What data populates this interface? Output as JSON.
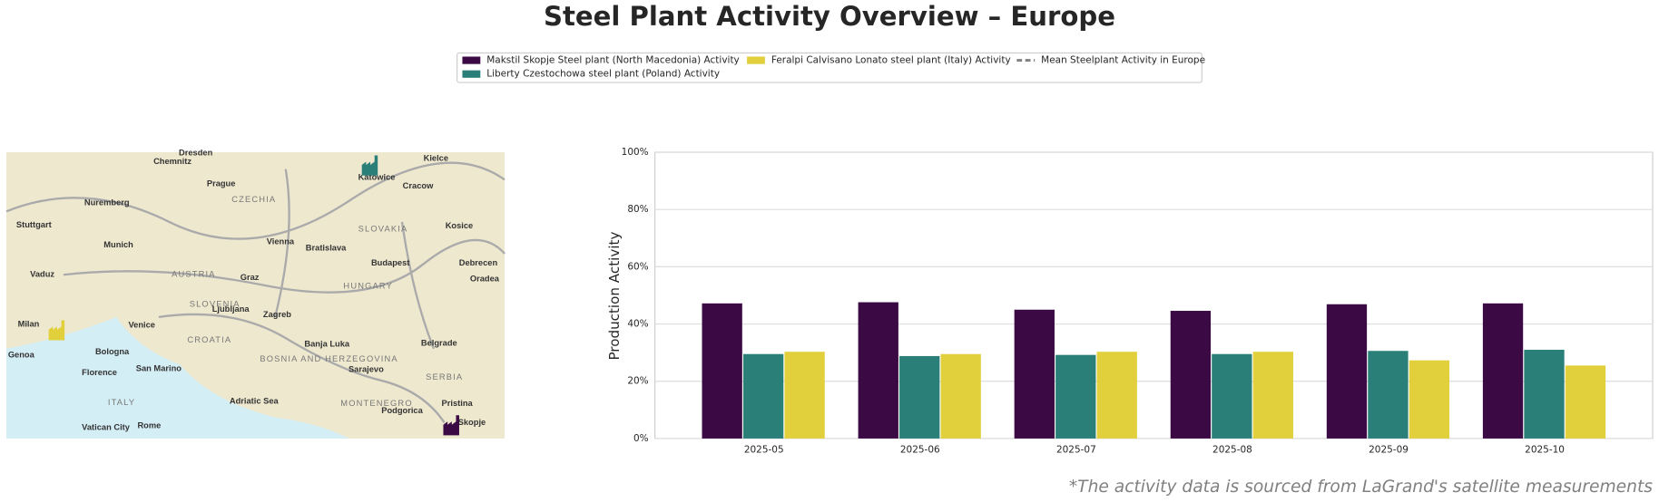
{
  "chart_data": {
    "type": "bar",
    "title": "Steel Plant Activity Overview – Europe",
    "y_label": "Production Activity",
    "footnote": "*The activity data is sourced from LaGrand's satellite measurements",
    "categories": [
      "2025-05",
      "2025-06",
      "2025-07",
      "2025-08",
      "2025-09",
      "2025-10"
    ],
    "series": [
      {
        "name": "Makstil Skopje Steel plant (North Macedonia) Activity",
        "color": "#3b0a45",
        "values": [
          47.2,
          47.6,
          45,
          44.6,
          46.9,
          47.2
        ]
      },
      {
        "name": "Liberty Czestochowa steel plant (Poland) Activity",
        "color": "#2a8078",
        "values": [
          29.5,
          28.8,
          29.2,
          29.5,
          30.6,
          31
        ]
      },
      {
        "name": "Feralpi Calvisano Lonato steel plant (Italy) Activity",
        "color": "#e1d03c",
        "values": [
          30.3,
          29.5,
          30.3,
          30.3,
          27.3,
          25.5
        ]
      },
      {
        "name": "Mean Steelplant Activity in Europe",
        "color": "#808080",
        "style": "dashed",
        "values": [
          null,
          null,
          null,
          null,
          null,
          null
        ]
      }
    ],
    "ylim": [
      0,
      100
    ],
    "yticks": [
      {
        "value": 0,
        "label": "0%"
      },
      {
        "value": 20,
        "label": "20%"
      },
      {
        "value": 40,
        "label": "40%"
      },
      {
        "value": 60,
        "label": "60%"
      },
      {
        "value": 80,
        "label": "80%"
      },
      {
        "value": 100,
        "label": "100%"
      }
    ],
    "grid": true,
    "legend": "top",
    "map_labels": [
      "Dresden",
      "Chemnitz",
      "Prague",
      "CZECHIA",
      "Nuremberg",
      "Stuttgart",
      "Munich",
      "Vaduz",
      "AUSTRIA",
      "Vienna",
      "Bratislava",
      "SLOVAKIA",
      "Budapest",
      "HUNGARY",
      "Graz",
      "SLOVENIA",
      "Ljubljana",
      "Zagreb",
      "CROATIA",
      "Milan",
      "Venice",
      "Bologna",
      "Genoa",
      "San Marino",
      "Florence",
      "ITALY",
      "Rome",
      "Vatican City",
      "Banja Luka",
      "BOSNIA AND HERZEGOVINA",
      "Sarajevo",
      "Belgrade",
      "SERBIA",
      "MONTENEGRO",
      "Podgorica",
      "Pristina",
      "Skopje",
      "Katowice",
      "Kielce",
      "Cracow",
      "Kosice",
      "Debrecen",
      "Oradea",
      "Adriatic Sea"
    ]
  }
}
